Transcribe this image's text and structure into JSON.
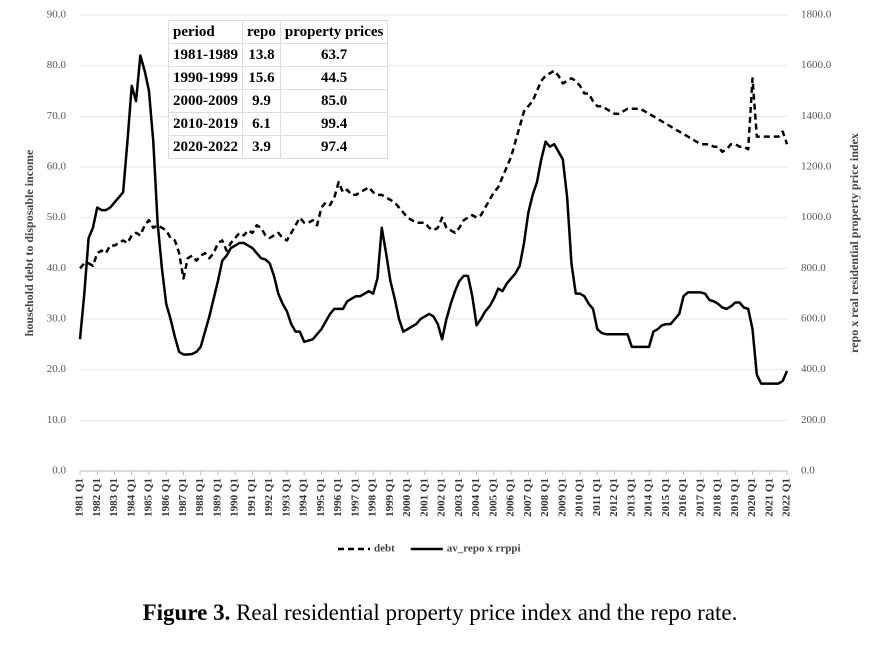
{
  "chart_data": {
    "type": "line",
    "ylabel": "household debt to disposable income",
    "y2label": "repo x real residential property price index",
    "categories": [
      "1981 Q1",
      null,
      null,
      null,
      "1982 Q1",
      null,
      null,
      null,
      "1983 Q1",
      null,
      null,
      null,
      "1984 Q1",
      null,
      null,
      null,
      "1985 Q1",
      null,
      null,
      null,
      "1986 Q1",
      null,
      null,
      null,
      "1987 Q1",
      null,
      null,
      null,
      "1988 Q1",
      null,
      null,
      null,
      "1989 Q1",
      null,
      null,
      null,
      "1990 Q1",
      null,
      null,
      null,
      "1991 Q1",
      null,
      null,
      null,
      "1992 Q1",
      null,
      null,
      null,
      "1993 Q1",
      null,
      null,
      null,
      "1994 Q1",
      null,
      null,
      null,
      "1995 Q1",
      null,
      null,
      null,
      "1996 Q1",
      null,
      null,
      null,
      "1997 Q1",
      null,
      null,
      null,
      "1998 Q1",
      null,
      null,
      null,
      "1999 Q1",
      null,
      null,
      null,
      "2000 Q1",
      null,
      null,
      null,
      "2001 Q1",
      null,
      null,
      null,
      "2002 Q1",
      null,
      null,
      null,
      "2003 Q1",
      null,
      null,
      null,
      "2004 Q1",
      null,
      null,
      null,
      "2005 Q1",
      null,
      null,
      null,
      "2006 Q1",
      null,
      null,
      null,
      "2007 Q1",
      null,
      null,
      null,
      "2008 Q1",
      null,
      null,
      null,
      "2009 Q1",
      null,
      null,
      null,
      "2010 Q1",
      null,
      null,
      null,
      "2011 Q1",
      null,
      null,
      null,
      "2012 Q1",
      null,
      null,
      null,
      "2013 Q1",
      null,
      null,
      null,
      "2014 Q1",
      null,
      null,
      null,
      "2015 Q1",
      null,
      null,
      null,
      "2016 Q1",
      null,
      null,
      null,
      "2017 Q1",
      null,
      null,
      null,
      "2018 Q1",
      null,
      null,
      null,
      "2019 Q1",
      null,
      null,
      null,
      "2020 Q1",
      null,
      null,
      null,
      "2021 Q1",
      null,
      null,
      null,
      "2022 Q1"
    ],
    "series": [
      {
        "name": "debt",
        "color": "#000000",
        "style": "dashed",
        "axis": "y",
        "values": [
          40,
          41,
          41,
          40.5,
          43,
          43.5,
          43,
          44.5,
          44.5,
          45,
          45.5,
          45,
          46.5,
          47,
          46.5,
          48.5,
          49.5,
          48,
          48.5,
          48,
          47.5,
          46,
          45.5,
          43,
          38,
          42,
          42.5,
          41.5,
          42.5,
          43,
          42,
          43,
          45,
          45.5,
          43.5,
          45,
          46,
          47,
          46.5,
          47.5,
          47,
          48.5,
          48,
          46.5,
          46,
          46.5,
          47,
          46,
          45.5,
          47,
          48.5,
          50,
          49,
          49,
          49.5,
          48.5,
          52,
          53,
          52.5,
          54,
          57,
          55,
          55.5,
          54.5,
          54.5,
          55,
          55.5,
          56,
          55,
          54.5,
          54.5,
          54,
          53.5,
          53,
          52,
          51,
          50,
          49.5,
          49,
          49,
          49,
          48,
          47.5,
          48,
          50,
          48,
          47.5,
          47,
          48,
          49.5,
          50,
          50.5,
          50,
          50.5,
          52,
          53.5,
          55,
          56,
          58,
          60,
          62,
          65,
          68,
          71,
          72,
          73,
          75,
          77,
          78,
          78.5,
          79,
          78,
          76.5,
          77,
          77.5,
          77,
          76,
          74.5,
          74.5,
          73,
          72,
          72,
          71.5,
          71,
          70.5,
          70.5,
          71,
          71.5,
          71.5,
          71.5,
          71.5,
          71,
          70.5,
          70,
          69.5,
          69,
          68.5,
          68,
          67.5,
          67,
          66.5,
          66,
          65.5,
          65,
          64.5,
          64.5,
          64.5,
          64,
          64,
          63,
          63.5,
          64.5,
          64.5,
          64,
          64,
          63.5,
          77.5,
          66,
          66,
          66,
          66,
          66,
          66,
          67,
          64.5
        ]
      },
      {
        "name": "av_repo x rrppi",
        "color": "#000000",
        "style": "solid",
        "axis": "y2",
        "values": [
          520,
          700,
          920,
          960,
          1040,
          1030,
          1030,
          1040,
          1060,
          1080,
          1100,
          1300,
          1520,
          1460,
          1640,
          1580,
          1500,
          1300,
          980,
          800,
          660,
          600,
          530,
          470,
          460,
          460,
          462,
          470,
          490,
          550,
          610,
          680,
          750,
          830,
          850,
          880,
          890,
          900,
          900,
          890,
          880,
          860,
          840,
          835,
          820,
          770,
          700,
          660,
          630,
          580,
          550,
          550,
          510,
          515,
          520,
          540,
          560,
          590,
          620,
          640,
          640,
          640,
          670,
          680,
          690,
          690,
          700,
          710,
          700,
          760,
          960,
          860,
          750,
          680,
          600,
          550,
          560,
          570,
          580,
          600,
          610,
          620,
          610,
          580,
          520,
          600,
          660,
          710,
          750,
          770,
          770,
          690,
          575,
          600,
          630,
          650,
          680,
          720,
          710,
          740,
          760,
          780,
          810,
          900,
          1020,
          1090,
          1140,
          1230,
          1300,
          1280,
          1290,
          1260,
          1230,
          1080,
          820,
          700,
          700,
          690,
          660,
          640,
          560,
          545,
          540,
          540,
          540,
          540,
          540,
          540,
          490,
          490,
          490,
          490,
          490,
          550,
          560,
          575,
          580,
          580,
          600,
          620,
          690,
          705,
          705,
          705,
          705,
          700,
          675,
          670,
          660,
          645,
          640,
          650,
          665,
          665,
          645,
          640,
          560,
          380,
          345,
          345,
          345,
          345,
          345,
          355,
          395
        ]
      }
    ],
    "ylim": [
      0,
      90
    ],
    "yticks": [
      {
        "value": 0,
        "label": "0.0"
      },
      {
        "value": 10,
        "label": "10.0"
      },
      {
        "value": 20,
        "label": "20.0"
      },
      {
        "value": 30,
        "label": "30.0"
      },
      {
        "value": 40,
        "label": "40.0"
      },
      {
        "value": 50,
        "label": "50.0"
      },
      {
        "value": 60,
        "label": "60.0"
      },
      {
        "value": 70,
        "label": "70.0"
      },
      {
        "value": 80,
        "label": "80.0"
      },
      {
        "value": 90,
        "label": "90.0"
      }
    ],
    "y2lim": [
      0,
      1800
    ],
    "y2ticks": [
      {
        "value": 0,
        "label": "0.0"
      },
      {
        "value": 200,
        "label": "200.0"
      },
      {
        "value": 400,
        "label": "400.0"
      },
      {
        "value": 600,
        "label": "600.0"
      },
      {
        "value": 800,
        "label": "800.0"
      },
      {
        "value": 1000,
        "label": "1000.0"
      },
      {
        "value": 1200,
        "label": "1200.0"
      },
      {
        "value": 1400,
        "label": "1400.0"
      },
      {
        "value": 1600,
        "label": "1600.0"
      },
      {
        "value": 1800,
        "label": "1800.0"
      }
    ],
    "grid": true,
    "legend": "bottom"
  },
  "table": {
    "header": [
      "period",
      "repo",
      "property prices"
    ],
    "rows": [
      [
        "1981-1989",
        "13.8",
        "63.7"
      ],
      [
        "1990-1999",
        "15.6",
        "44.5"
      ],
      [
        "2000-2009",
        "9.9",
        "85.0"
      ],
      [
        "2010-2019",
        "6.1",
        "99.4"
      ],
      [
        "2020-2022",
        "3.9",
        "97.4"
      ]
    ]
  },
  "caption": {
    "label": "Figure 3.",
    "text": "Real residential property price index and the repo rate."
  }
}
